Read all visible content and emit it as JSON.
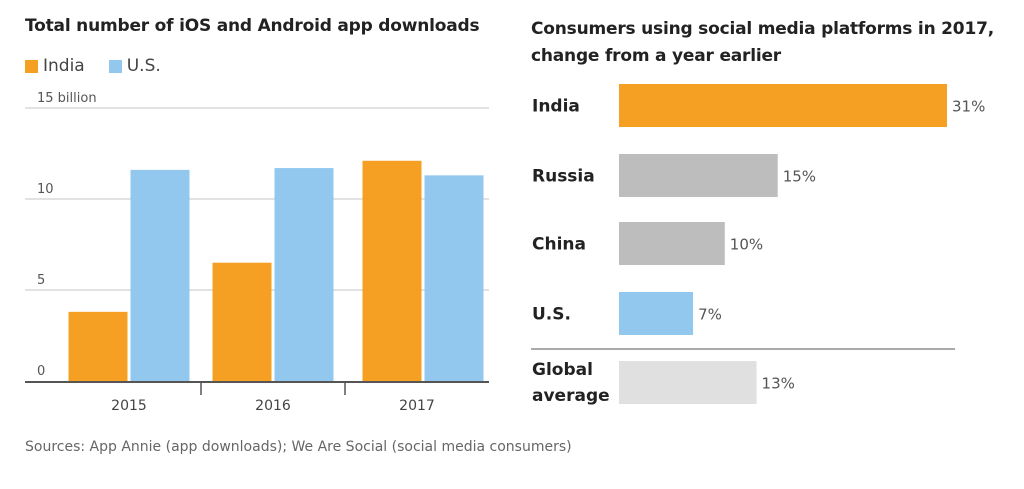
{
  "chart_data": [
    {
      "type": "bar",
      "title": "Total number of iOS and Android app downloads",
      "xlabel": "",
      "ylabel": "",
      "y_unit_label": "15 billion",
      "ylim": [
        0,
        15
      ],
      "yticks": [
        0,
        5,
        10,
        15
      ],
      "ytick_labels": [
        "0",
        "5",
        "10",
        "15 billion"
      ],
      "grid": true,
      "legend_position": "top-left",
      "categories": [
        "2015",
        "2016",
        "2017"
      ],
      "series": [
        {
          "name": "India",
          "color": "#f5a022",
          "values": [
            3.8,
            6.5,
            12.1
          ]
        },
        {
          "name": "U.S.",
          "color": "#93c8ee",
          "values": [
            11.6,
            11.7,
            11.3
          ]
        }
      ]
    },
    {
      "type": "bar",
      "orientation": "horizontal",
      "title": "Consumers using social media platforms in 2017, change from a year earlier",
      "xlabel": "",
      "ylabel": "",
      "xlim": [
        0,
        31
      ],
      "grid": false,
      "categories": [
        "India",
        "Russia",
        "China",
        "U.S.",
        "Global average"
      ],
      "values": [
        31,
        15,
        10,
        7,
        13
      ],
      "value_labels": [
        "31%",
        "15%",
        "10%",
        "7%",
        "13%"
      ],
      "colors": [
        "#f5a022",
        "#bdbdbd",
        "#bdbdbd",
        "#93c8ee",
        "#e0e0e1"
      ]
    }
  ],
  "source": "Sources: App Annie (app downloads); We Are Social (social media consumers)"
}
